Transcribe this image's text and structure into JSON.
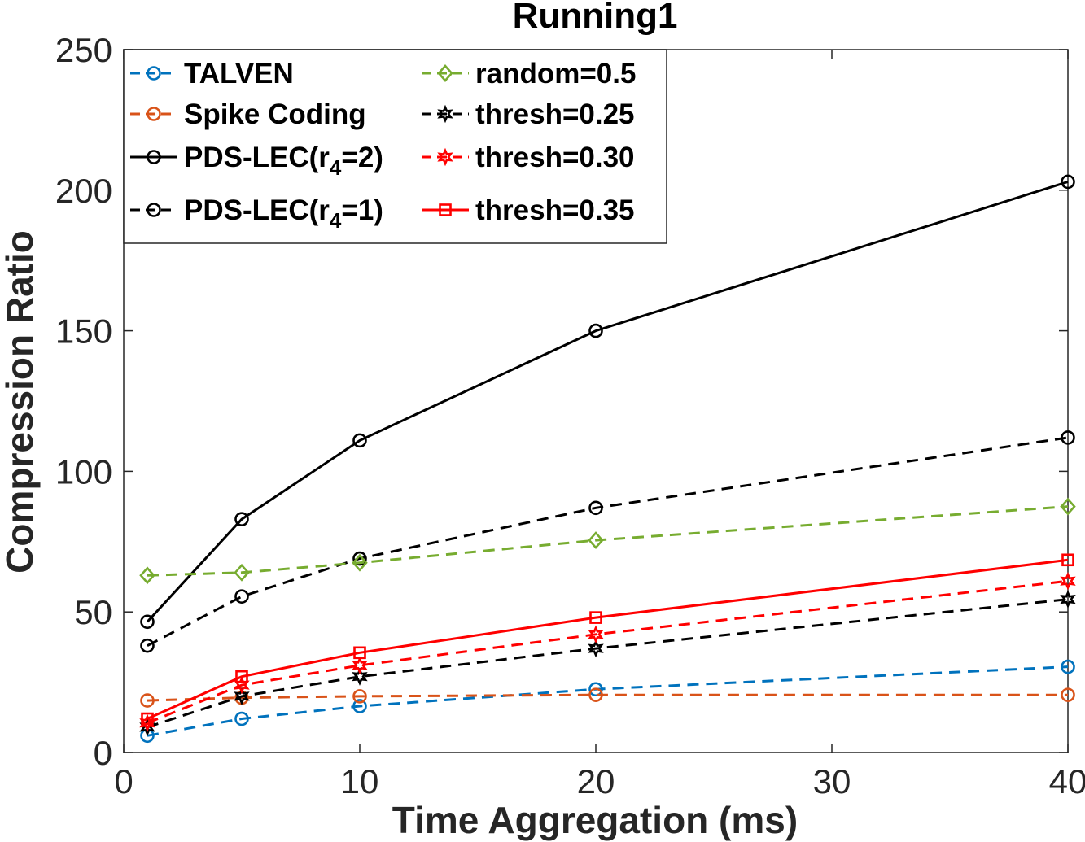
{
  "chart_data": {
    "type": "line",
    "title": "Running1",
    "xlabel": "Time Aggregation (ms)",
    "ylabel": "Compression Ratio",
    "xlim": [
      0,
      40
    ],
    "ylim": [
      0,
      250
    ],
    "xticks": [
      0,
      10,
      20,
      30,
      40
    ],
    "yticks": [
      0,
      50,
      100,
      150,
      200,
      250
    ],
    "grid": false,
    "legend_position": "top-left",
    "legend_columns": 2,
    "series": [
      {
        "name": "TALVEN",
        "legend_label": "TALVEN",
        "color": "#0072BD",
        "line": "dashed",
        "marker": "circle",
        "x": [
          1,
          5,
          10,
          20,
          40
        ],
        "y": [
          6,
          12,
          16.5,
          22.5,
          30.5
        ]
      },
      {
        "name": "Spike Coding",
        "legend_label": "Spike Coding",
        "color": "#D95319",
        "line": "dashed",
        "marker": "circle",
        "x": [
          1,
          5,
          10,
          20,
          40
        ],
        "y": [
          18.5,
          19.5,
          20,
          20.5,
          20.5
        ]
      },
      {
        "name": "PDS-LEC(r4=2)",
        "legend_label": "PDS-LEC(r",
        "legend_sub": "4",
        "legend_tail": "=2)",
        "color": "#000000",
        "line": "solid",
        "marker": "circle",
        "x": [
          1,
          5,
          10,
          20,
          40
        ],
        "y": [
          46.5,
          83,
          111,
          150,
          203
        ]
      },
      {
        "name": "PDS-LEC(r4=1)",
        "legend_label": "PDS-LEC(r",
        "legend_sub": "4",
        "legend_tail": "=1)",
        "color": "#000000",
        "line": "dashed",
        "marker": "circle",
        "x": [
          1,
          5,
          10,
          20,
          40
        ],
        "y": [
          38,
          55.5,
          69,
          87,
          112
        ]
      },
      {
        "name": "random=0.5",
        "legend_label": "random=0.5",
        "color": "#77AC30",
        "line": "dashed",
        "marker": "diamond",
        "x": [
          1,
          5,
          10,
          20,
          40
        ],
        "y": [
          63,
          64,
          67.5,
          75.5,
          87.5
        ]
      },
      {
        "name": "thresh=0.25",
        "legend_label": "thresh=0.25",
        "color": "#000000",
        "line": "dashed",
        "marker": "hexagram",
        "x": [
          1,
          5,
          10,
          20,
          40
        ],
        "y": [
          9,
          20,
          27,
          37,
          54.5
        ]
      },
      {
        "name": "thresh=0.30",
        "legend_label": "thresh=0.30",
        "color": "#FF0000",
        "line": "dashed",
        "marker": "hexagram",
        "x": [
          1,
          5,
          10,
          20,
          40
        ],
        "y": [
          10.5,
          24,
          31,
          42,
          61
        ]
      },
      {
        "name": "thresh=0.35",
        "legend_label": "thresh=0.35",
        "color": "#FF0000",
        "line": "solid",
        "marker": "square",
        "x": [
          1,
          5,
          10,
          20,
          40
        ],
        "y": [
          12,
          27,
          35.5,
          48,
          68.5
        ]
      }
    ]
  }
}
